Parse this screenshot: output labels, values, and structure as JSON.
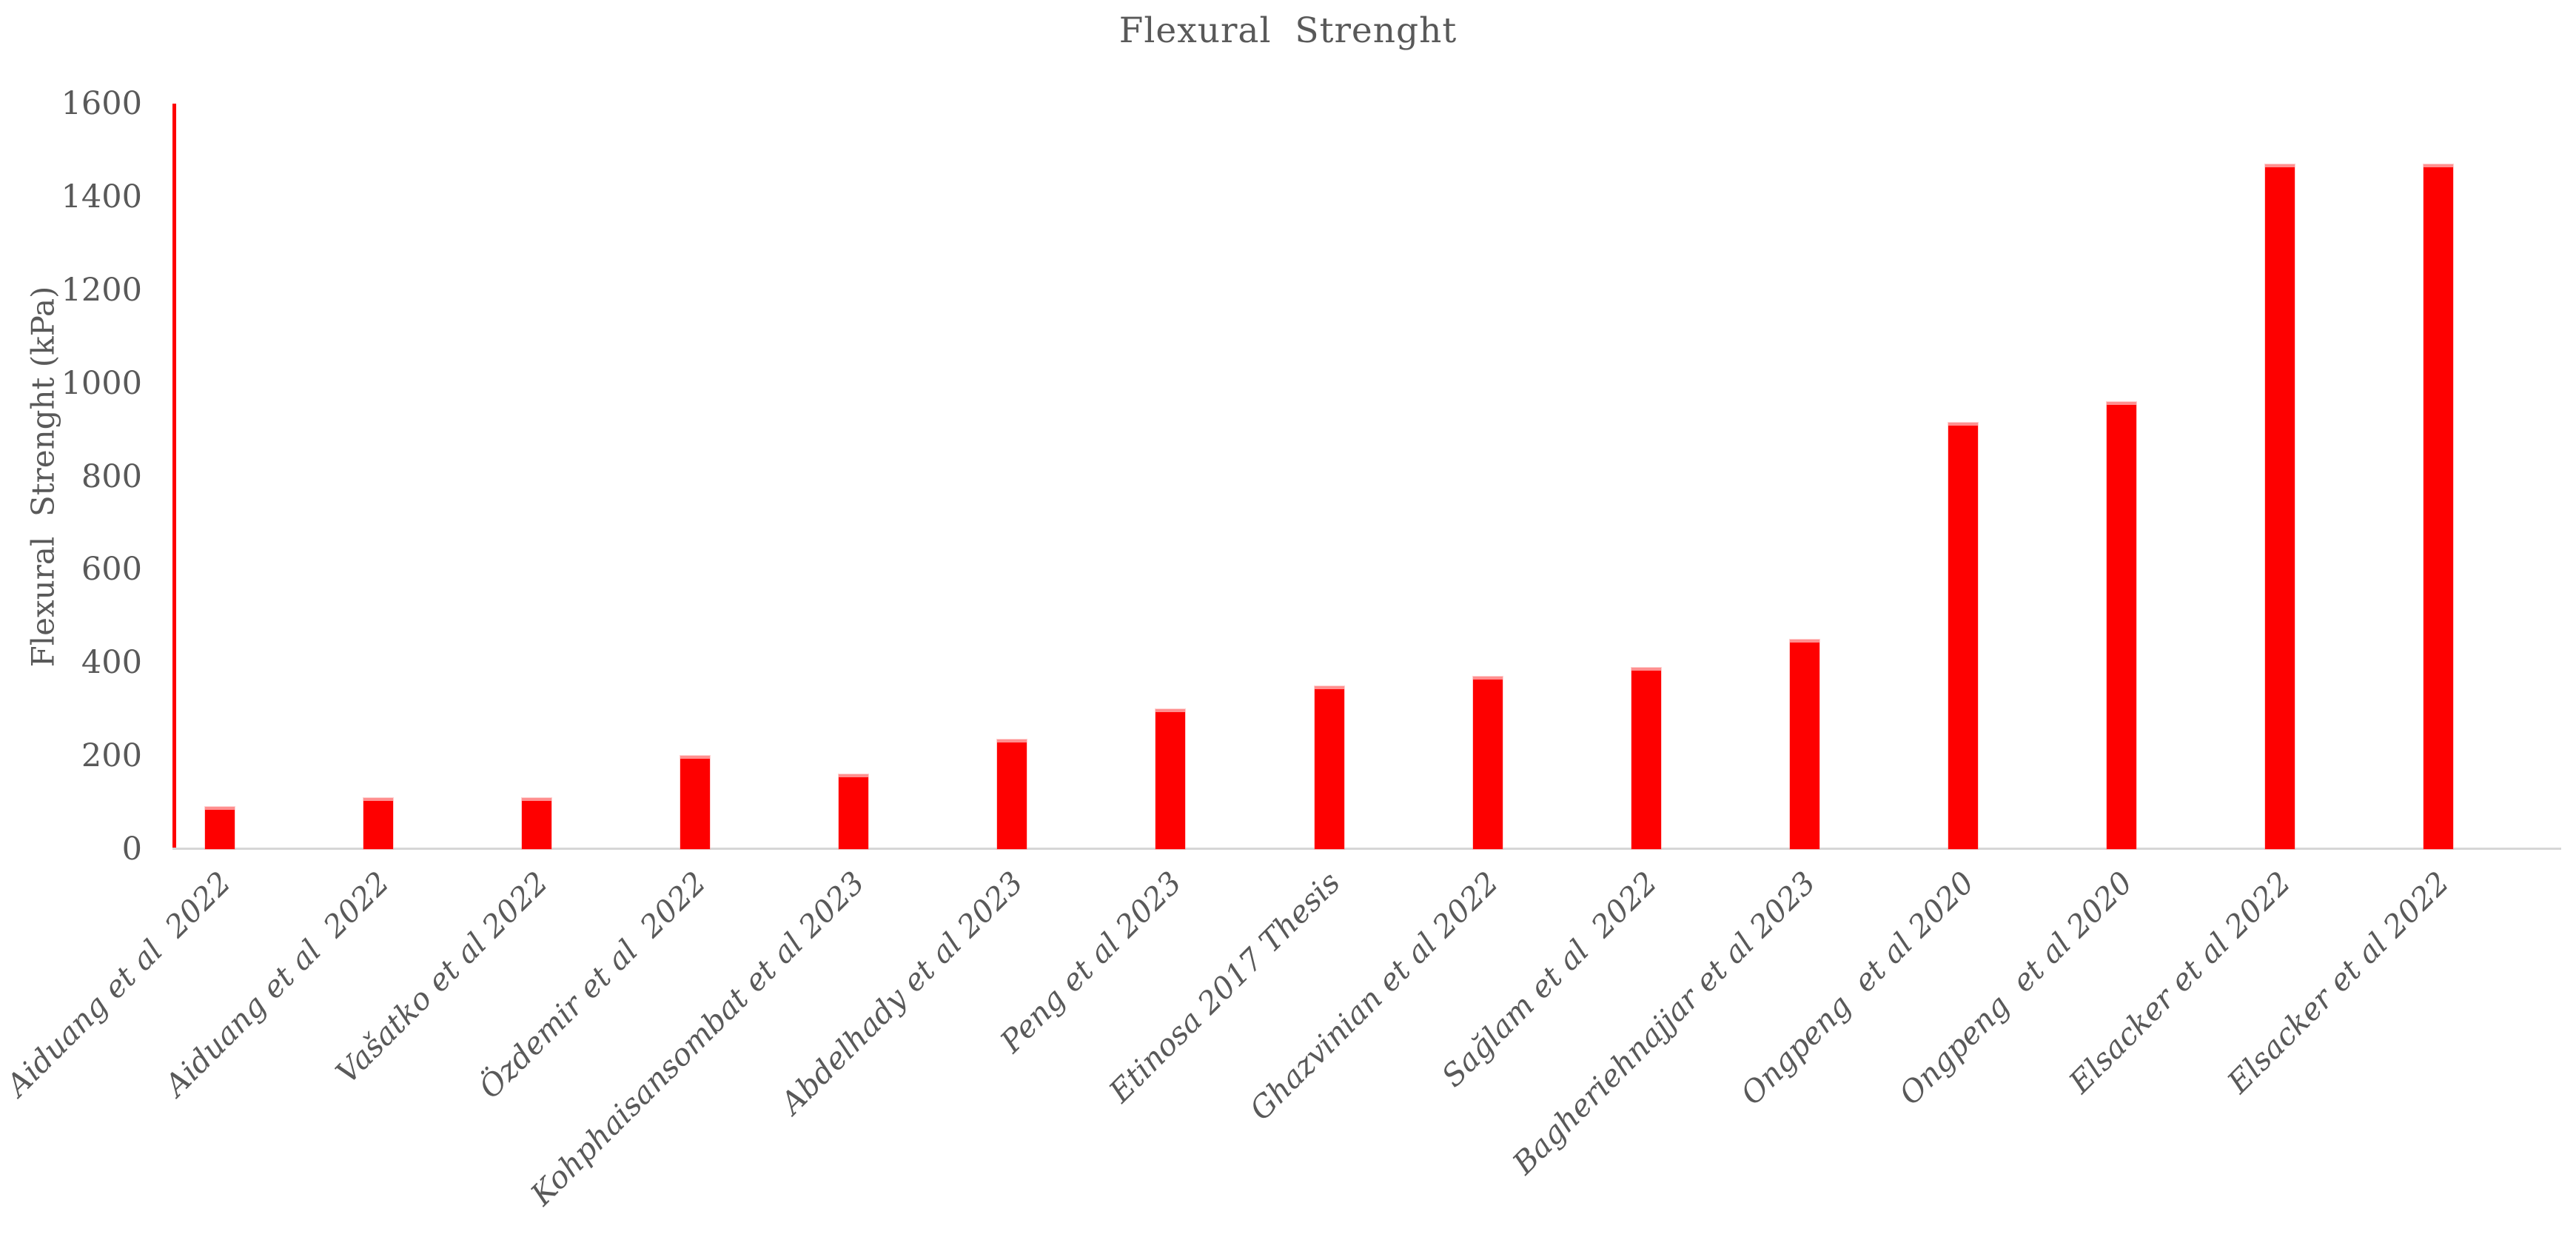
{
  "chart_data": {
    "type": "bar",
    "title": "Flexural  Strenght",
    "xlabel": "",
    "ylabel": "Flexural  Strenght (kPa)",
    "ylim": [
      0,
      1600
    ],
    "ytick_step": 200,
    "ytick_labels": [
      "0",
      "200",
      "400",
      "600",
      "800",
      "1000",
      "1200",
      "1400",
      "1600"
    ],
    "grid": false,
    "legend": null,
    "background": "#ffffff",
    "bar_color": "#fe0000",
    "y_axis_line_color": "#fe0000",
    "x_axis_line_color": "#d6d6d6",
    "text_color": "#595959",
    "x_labels_rotation_deg": 45,
    "categories": [
      "Aiduang et al  2022",
      "Aiduang et al  2022",
      "Vašatko et al 2022",
      "Özdemir et al  2022",
      "Kohphaisansombat et al 2023",
      "Abdelhady et al 2023",
      "Peng et al 2023",
      "Etinosa 2017 Thesis",
      "Ghazvinian et al 2022",
      "Sağlam et al  2022",
      "Bagheriehnajjar et al 2023",
      "Ongpeng  et al 2020",
      "Ongpeng  et al 2020",
      "Elsacker et al 2022",
      "Elsacker et al 2022"
    ],
    "values": [
      90,
      110,
      110,
      200,
      160,
      235,
      300,
      350,
      370,
      390,
      450,
      915,
      960,
      1470,
      1470
    ]
  }
}
